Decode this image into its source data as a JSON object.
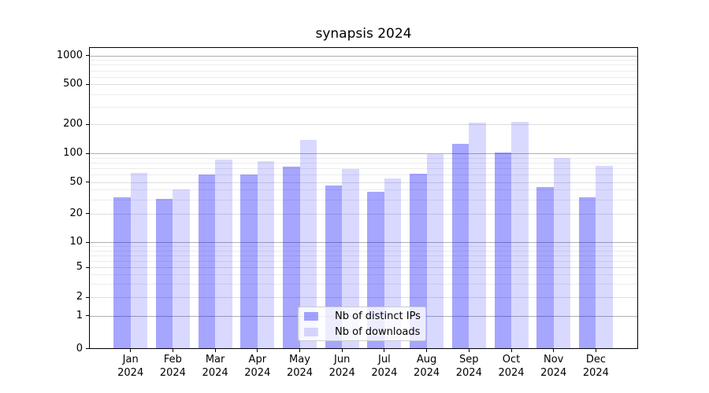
{
  "title": "synapsis 2024",
  "chart_data": {
    "type": "bar",
    "title": "synapsis 2024",
    "categories": [
      "Jan",
      "Feb",
      "Mar",
      "Apr",
      "May",
      "Jun",
      "Jul",
      "Aug",
      "Sep",
      "Oct",
      "Nov",
      "Dec"
    ],
    "x_tick_year": "2024",
    "series": [
      {
        "name": "Nb of distinct IPs",
        "color": "rgba(0,0,255,0.35)",
        "values": [
          32,
          31,
          60,
          60,
          72,
          45,
          38,
          61,
          125,
          101,
          43,
          32
        ]
      },
      {
        "name": "Nb of downloads",
        "color": "rgba(0,0,255,0.15)",
        "values": [
          62,
          40,
          86,
          83,
          137,
          69,
          55,
          98,
          210,
          211,
          89,
          74
        ]
      }
    ],
    "y_axis": {
      "scale": "asinh-log",
      "ticks": [
        0,
        1,
        2,
        5,
        10,
        20,
        50,
        100,
        200,
        500,
        1000
      ],
      "major_grid_ticks": [
        1,
        10,
        100,
        1000
      ],
      "minor_grid_values": [
        3,
        4,
        6,
        7,
        8,
        9,
        30,
        40,
        60,
        70,
        80,
        90,
        300,
        400,
        600,
        700,
        800,
        900
      ],
      "range": [
        0,
        1000
      ]
    },
    "legend": {
      "position": "lower-center",
      "entries": [
        "Nb of distinct IPs",
        "Nb of downloads"
      ]
    },
    "grid": true,
    "xlabel": "",
    "ylabel": ""
  },
  "colors": {
    "bar_dark": "rgba(0,0,255,0.35)",
    "bar_light": "rgba(0,0,255,0.15)",
    "grid_major": "#b0b0b0",
    "grid_minor": "#ececec",
    "spine": "#000000",
    "background": "#ffffff"
  }
}
